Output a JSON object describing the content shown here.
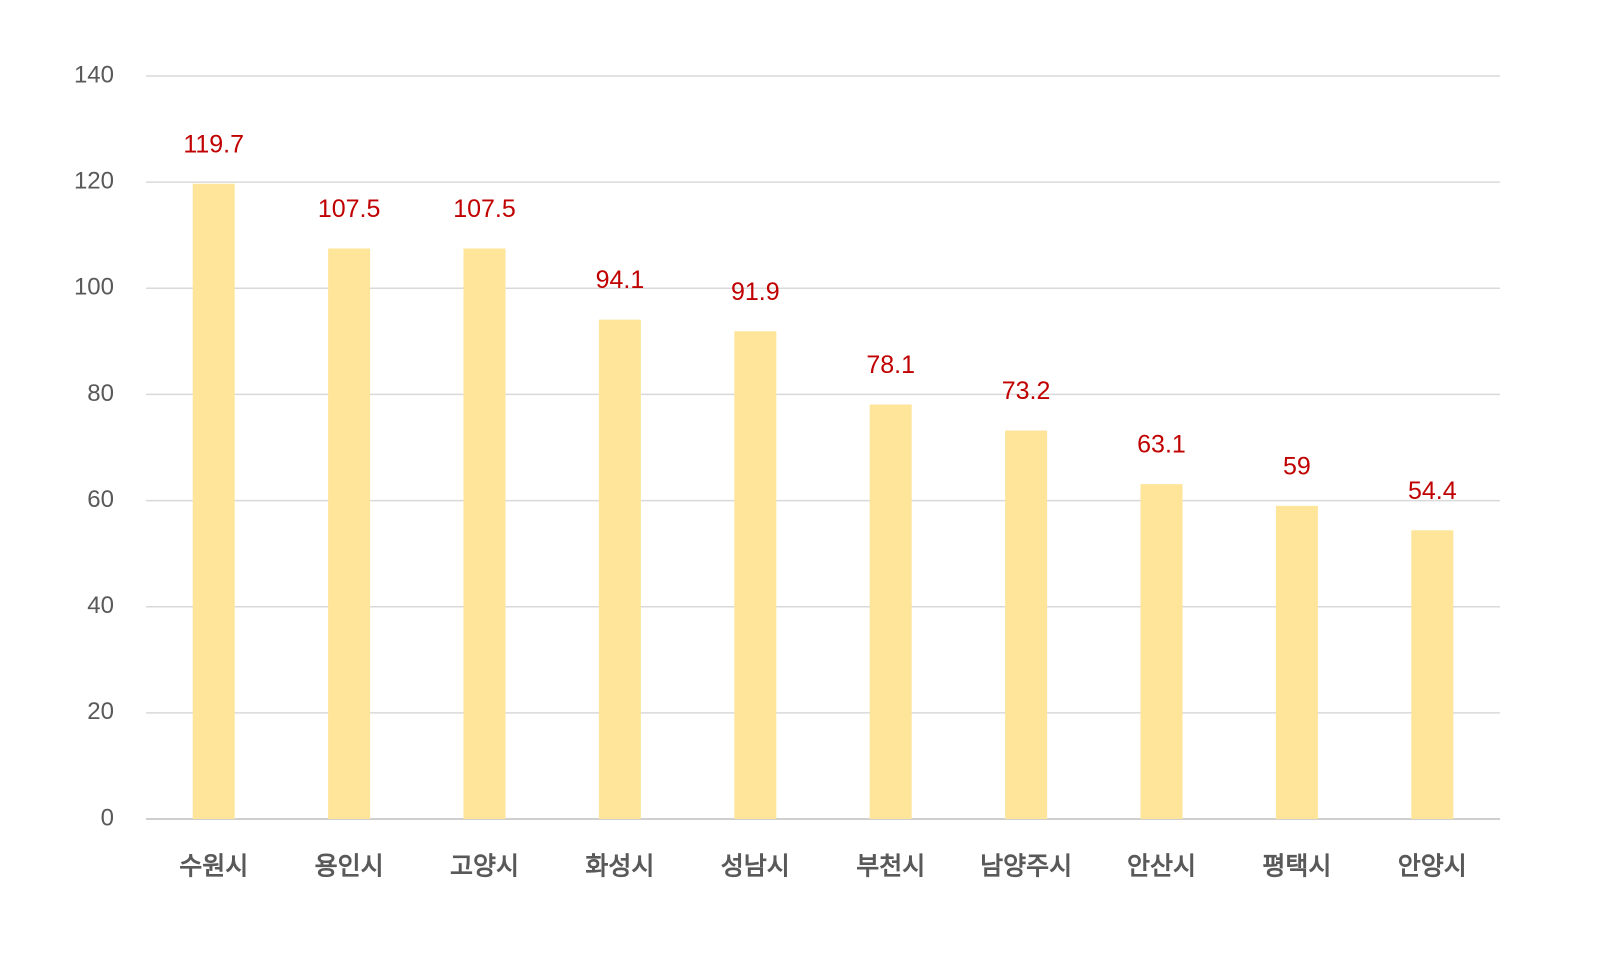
{
  "chart_data": {
    "type": "bar",
    "categories": [
      "수원시",
      "용인시",
      "고양시",
      "화성시",
      "성남시",
      "부천시",
      "남양주시",
      "안산시",
      "평택시",
      "안양시"
    ],
    "values": [
      119.7,
      107.5,
      107.5,
      94.1,
      91.9,
      78.1,
      73.2,
      63.1,
      59,
      54.4
    ],
    "color": "#fee599",
    "label_color": "#c00000",
    "ylim": [
      0,
      140
    ],
    "yticks": [
      0,
      20,
      40,
      60,
      80,
      100,
      120,
      140
    ],
    "grid": true
  }
}
